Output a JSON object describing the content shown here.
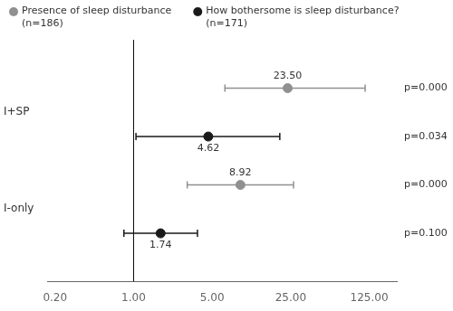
{
  "chart_data": {
    "type": "forest",
    "log": "x",
    "categories": [
      "I+SP",
      "I-only"
    ],
    "series": [
      {
        "name": "Presence of sleep disturbance\n(n=186)",
        "color": "#909090",
        "values": [
          23.5,
          8.92
        ],
        "value_labels": [
          "23.50",
          "8.92"
        ],
        "ci_low": [
          6.5,
          3.0
        ],
        "ci_high": [
          115.0,
          26.5
        ],
        "p_values": [
          "p=0.000",
          "p=0.000"
        ]
      },
      {
        "name": "How bothersome is sleep disturbance?\n(n=171)",
        "color": "#1a1a1a",
        "values": [
          4.62,
          1.74
        ],
        "value_labels": [
          "4.62",
          "1.74"
        ],
        "ci_low": [
          1.05,
          0.82
        ],
        "ci_high": [
          20.0,
          3.7
        ],
        "p_values": [
          "p=0.034",
          "p=0.100"
        ]
      }
    ],
    "xlim": [
      0.17,
      220.0
    ],
    "xticks": [
      {
        "value": 0.2,
        "label": "0.20"
      },
      {
        "value": 1.0,
        "label": "1.00"
      },
      {
        "value": 5.0,
        "label": "5.00"
      },
      {
        "value": 25.0,
        "label": "25.00"
      },
      {
        "value": 125.0,
        "label": "125.00"
      }
    ],
    "reference_line": 1.0,
    "data_labels": true,
    "legend": "top",
    "grid": false
  }
}
